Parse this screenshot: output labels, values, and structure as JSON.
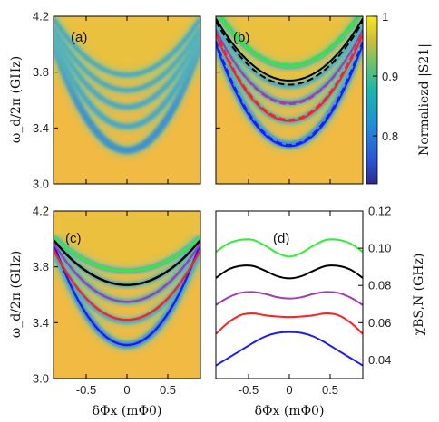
{
  "chart_data": [
    {
      "panel": "(a)",
      "type": "heatmap",
      "ylabel": "ω_d/2π (GHz)",
      "xlim": [
        -0.9,
        0.9
      ],
      "ylim": [
        3.0,
        4.2
      ],
      "yticks": [
        "3.0",
        "3.4",
        "3.8",
        "4.2"
      ],
      "grid": false
    },
    {
      "panel": "(b)",
      "type": "heatmap",
      "xlim": [
        -0.9,
        0.9
      ],
      "ylim": [
        3.0,
        4.2
      ],
      "grid": false,
      "colorbar": {
        "label": "Normaliezd |S21|",
        "range": [
          0.72,
          1.0
        ],
        "ticks": [
          "1",
          "0.9",
          "0.8"
        ]
      },
      "series": [
        {
          "color": "#1a1aff",
          "dashed_ymin": 3.28,
          "solid_ymin": 3.27,
          "curvature": 0.92
        },
        {
          "color": "#ff2020",
          "dashed_ymin": 3.46,
          "solid_ymin": 3.45,
          "curvature": 0.78
        },
        {
          "color": "#9e3fb0",
          "dashed_ymin": 3.57,
          "solid_ymin": 3.58,
          "curvature": 0.66
        },
        {
          "color": "#000000",
          "dashed_ymin": 3.71,
          "solid_ymin": 3.74,
          "curvature": 0.56
        },
        {
          "color": "#33ee33",
          "dashed_ymin": 3.86,
          "solid_ymin": 3.84,
          "curvature": 0.5
        }
      ]
    },
    {
      "panel": "(c)",
      "type": "heatmap",
      "xlabel": "δΦx (mΦ0)",
      "ylabel": "ω_d/2π (GHz)",
      "xlim": [
        -0.9,
        0.9
      ],
      "ylim": [
        3.0,
        4.2
      ],
      "xticks": [
        "-0.5",
        "0",
        "0.5"
      ],
      "yticks": [
        "3.0",
        "3.4",
        "3.8",
        "4.2"
      ],
      "grid": false,
      "series": [
        {
          "color": "#1a1aff",
          "ymin": 3.24,
          "curvature": 0.9
        },
        {
          "color": "#ff2020",
          "ymin": 3.42,
          "curvature": 0.62
        },
        {
          "color": "#9e3fb0",
          "ymin": 3.55,
          "curvature": 0.52
        },
        {
          "color": "#000000",
          "ymin": 3.67,
          "curvature": 0.4
        },
        {
          "color": "#33ee33",
          "ymin": 3.77,
          "curvature": 0.3
        }
      ]
    },
    {
      "panel": "(d)",
      "type": "line",
      "xlabel": "δΦx (mΦ0)",
      "ylabel": "χBS,N (GHz)",
      "xlim": [
        -0.9,
        0.9
      ],
      "ylim": [
        0.03,
        0.12
      ],
      "xticks": [
        "-0.5",
        "0",
        "0.5"
      ],
      "yticks": [
        "0.04",
        "0.06",
        "0.08",
        "0.10",
        "0.12"
      ],
      "grid": false,
      "series": [
        {
          "color": "#1a1aff",
          "x": [
            -0.9,
            -0.75,
            -0.6,
            -0.45,
            -0.3,
            -0.15,
            0,
            0.15,
            0.3,
            0.45,
            0.6,
            0.75,
            0.9
          ],
          "y": [
            0.037,
            0.041,
            0.045,
            0.049,
            0.0525,
            0.0545,
            0.055,
            0.0545,
            0.0525,
            0.049,
            0.045,
            0.041,
            0.037
          ]
        },
        {
          "color": "#ff2020",
          "x": [
            -0.9,
            -0.75,
            -0.6,
            -0.45,
            -0.3,
            -0.15,
            0,
            0.15,
            0.3,
            0.45,
            0.6,
            0.75,
            0.9
          ],
          "y": [
            0.054,
            0.06,
            0.064,
            0.065,
            0.064,
            0.0633,
            0.063,
            0.0633,
            0.064,
            0.065,
            0.064,
            0.06,
            0.054
          ]
        },
        {
          "color": "#9e3fb0",
          "x": [
            -0.9,
            -0.75,
            -0.6,
            -0.45,
            -0.3,
            -0.15,
            0,
            0.15,
            0.3,
            0.45,
            0.6,
            0.75,
            0.9
          ],
          "y": [
            0.0695,
            0.0735,
            0.076,
            0.0765,
            0.0755,
            0.0737,
            0.073,
            0.0737,
            0.0755,
            0.0765,
            0.076,
            0.0735,
            0.0695
          ]
        },
        {
          "color": "#000000",
          "x": [
            -0.9,
            -0.75,
            -0.6,
            -0.45,
            -0.3,
            -0.15,
            0,
            0.15,
            0.3,
            0.45,
            0.6,
            0.75,
            0.9
          ],
          "y": [
            0.084,
            0.0885,
            0.0905,
            0.0905,
            0.088,
            0.085,
            0.0838,
            0.085,
            0.088,
            0.0905,
            0.0905,
            0.0885,
            0.084
          ]
        },
        {
          "color": "#33ee33",
          "x": [
            -0.9,
            -0.75,
            -0.6,
            -0.45,
            -0.3,
            -0.15,
            0,
            0.15,
            0.3,
            0.45,
            0.6,
            0.75,
            0.9
          ],
          "y": [
            0.098,
            0.1025,
            0.1045,
            0.1045,
            0.1015,
            0.0975,
            0.0955,
            0.0975,
            0.1015,
            0.1045,
            0.1045,
            0.1025,
            0.098
          ]
        }
      ]
    }
  ]
}
